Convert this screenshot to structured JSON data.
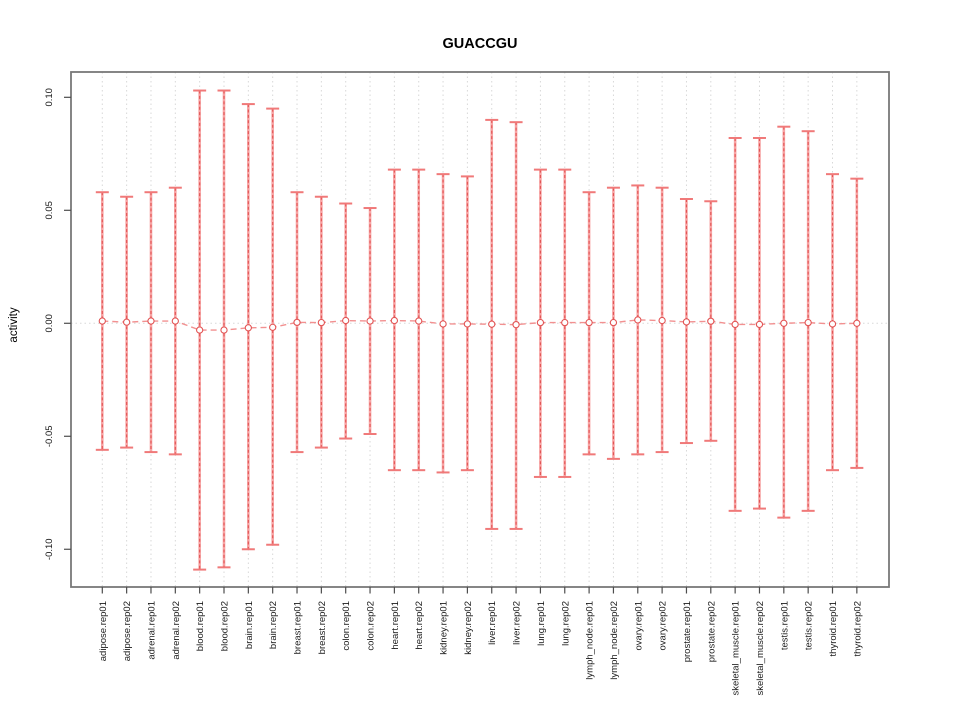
{
  "page": {
    "background": "#ffffff"
  },
  "header": {
    "title": "GUACCGU"
  },
  "chart_data": {
    "type": "errorbar",
    "title": "GUACCGU",
    "xlabel": "",
    "ylabel": "activity",
    "ylim": [
      -0.1167,
      0.1112
    ],
    "yticks": [
      -0.1,
      -0.05,
      0.0,
      0.05,
      0.1
    ],
    "ytick_labels": [
      "-0.10",
      "-0.05",
      "0.00",
      "0.05",
      "0.10"
    ],
    "grid": "dotted vertical gridline per category, dotted horizontal line at zero",
    "legend_position": "none",
    "categories": [
      "adipose.rep01",
      "adipose.rep02",
      "adrenal.rep01",
      "adrenal.rep02",
      "blood.rep01",
      "blood.rep02",
      "brain.rep01",
      "brain.rep02",
      "breast.rep01",
      "breast.rep02",
      "colon.rep01",
      "colon.rep02",
      "heart.rep01",
      "heart.rep02",
      "kidney.rep01",
      "kidney.rep02",
      "liver.rep01",
      "liver.rep02",
      "lung.rep01",
      "lung.rep02",
      "lymph_node.rep01",
      "lymph_node.rep02",
      "ovary.rep01",
      "ovary.rep02",
      "prostate.rep01",
      "prostate.rep02",
      "skeletal_muscle.rep01",
      "skeletal_muscle.rep02",
      "testis.rep01",
      "testis.rep02",
      "thyroid.rep01",
      "thyroid.rep02"
    ],
    "series": [
      {
        "name": "mean",
        "values": [
          0.001,
          0.0005,
          0.001,
          0.001,
          -0.003,
          -0.003,
          -0.002,
          -0.0018,
          0.0004,
          0.0003,
          0.0012,
          0.001,
          0.0012,
          0.001,
          -0.0003,
          -0.0003,
          -0.0004,
          -0.0006,
          0.0003,
          0.0003,
          0.0003,
          0.0003,
          0.0015,
          0.0012,
          0.0006,
          0.0009,
          -0.0005,
          -0.0005,
          0.0,
          0.0003,
          -0.0003,
          0.0
        ]
      },
      {
        "name": "upper",
        "values": [
          0.058,
          0.056,
          0.058,
          0.06,
          0.103,
          0.103,
          0.097,
          0.095,
          0.058,
          0.056,
          0.053,
          0.051,
          0.068,
          0.068,
          0.066,
          0.065,
          0.09,
          0.089,
          0.068,
          0.068,
          0.058,
          0.06,
          0.061,
          0.06,
          0.055,
          0.054,
          0.082,
          0.082,
          0.087,
          0.085,
          0.066,
          0.064
        ]
      },
      {
        "name": "lower",
        "values": [
          -0.056,
          -0.055,
          -0.057,
          -0.058,
          -0.109,
          -0.108,
          -0.1,
          -0.098,
          -0.057,
          -0.055,
          -0.051,
          -0.049,
          -0.065,
          -0.065,
          -0.066,
          -0.065,
          -0.091,
          -0.091,
          -0.068,
          -0.068,
          -0.058,
          -0.06,
          -0.058,
          -0.057,
          -0.053,
          -0.052,
          -0.083,
          -0.082,
          -0.086,
          -0.083,
          -0.065,
          -0.064
        ]
      }
    ],
    "colors": {
      "whisker_solid": "#f7a4a4",
      "whisker_dash": "#e25454",
      "cap": "#f07979",
      "marker_stroke": "#e25454",
      "marker_fill": "#ffffff",
      "connector": "#f29090",
      "gridline": "#d8d8d8",
      "frame": "#787878",
      "tick": "#4d4d4d",
      "text": "#1a1a1a",
      "title_color": "#000000"
    }
  }
}
